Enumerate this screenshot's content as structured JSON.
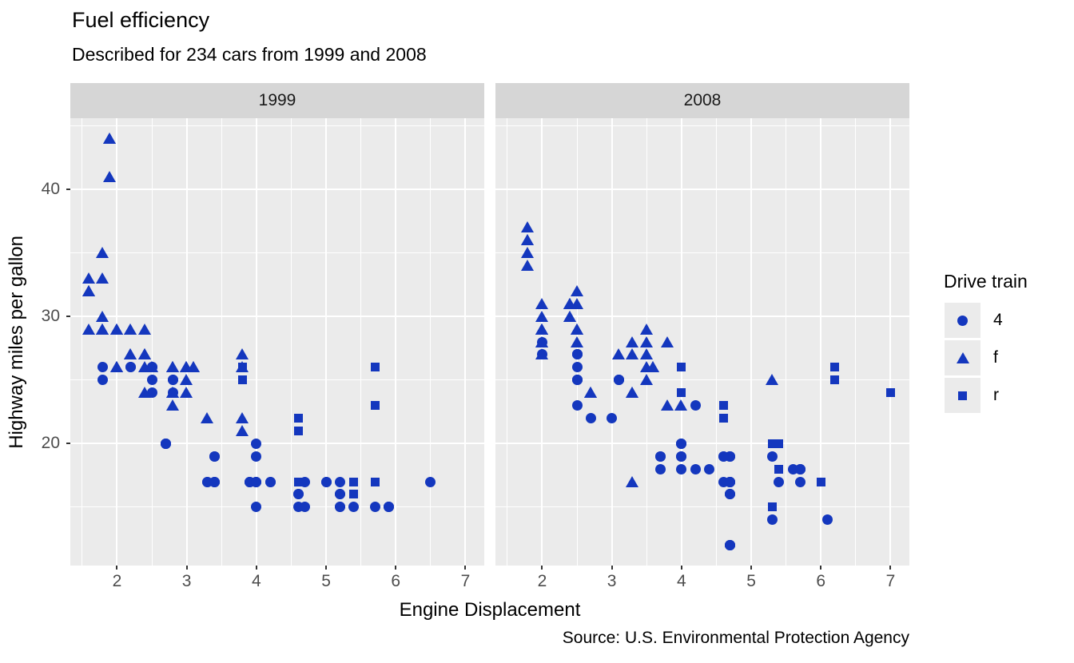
{
  "title": "Fuel efficiency",
  "subtitle": "Described for 234 cars from 1999 and 2008",
  "caption": "Source: U.S. Environmental Protection Agency",
  "colors": {
    "marker": "#1437be",
    "panel_bg": "#EBEBEB",
    "strip_bg": "#D6D6D6",
    "strip_text": "#1A1A1A",
    "grid": "#FFFFFF",
    "tick_text": "#4D4D4D",
    "legend_key_bg": "#EBEBEB"
  },
  "chart_data": {
    "type": "scatter",
    "title": "Fuel efficiency",
    "subtitle": "Described for 234 cars from 1999 and 2008",
    "caption": "Source: U.S. Environmental Protection Agency",
    "xlabel": "Engine Displacement",
    "ylabel": "Highway miles per gallon",
    "facets": [
      "1999",
      "2008"
    ],
    "legend": {
      "title": "Drive train",
      "position": "right",
      "entries": [
        {
          "label": "4",
          "shape": "circle"
        },
        {
          "label": "f",
          "shape": "triangle"
        },
        {
          "label": "r",
          "shape": "square"
        }
      ]
    },
    "x_ticks": [
      2,
      3,
      4,
      5,
      6,
      7
    ],
    "y_ticks": [
      20,
      30,
      40
    ],
    "x_minor_ticks": [
      1.5,
      2.5,
      3.5,
      4.5,
      5.5,
      6.5
    ],
    "y_minor_ticks": [
      15,
      25,
      35,
      45
    ],
    "xlim": [
      1.33,
      7.27
    ],
    "ylim": [
      10.4,
      45.6
    ],
    "grid": true,
    "series": [
      {
        "facet": "1999",
        "name": "4",
        "shape": "circle",
        "points": [
          [
            1.8,
            26
          ],
          [
            1.8,
            25
          ],
          [
            2.8,
            25
          ],
          [
            2.8,
            25
          ],
          [
            2.8,
            24
          ],
          [
            5.7,
            15
          ],
          [
            6.5,
            17
          ],
          [
            3.9,
            17
          ],
          [
            3.9,
            17
          ],
          [
            5.2,
            17
          ],
          [
            5.2,
            15
          ],
          [
            3.9,
            17
          ],
          [
            5.2,
            16
          ],
          [
            5.9,
            15
          ],
          [
            5.2,
            16
          ],
          [
            5.2,
            15
          ],
          [
            5.9,
            15
          ],
          [
            5.9,
            15
          ],
          [
            4.0,
            17
          ],
          [
            4.0,
            19
          ],
          [
            4.0,
            17
          ],
          [
            5.0,
            17
          ],
          [
            4.2,
            17
          ],
          [
            4.2,
            17
          ],
          [
            4.6,
            16
          ],
          [
            4.6,
            16
          ],
          [
            5.4,
            15
          ],
          [
            4.0,
            20
          ],
          [
            4.7,
            17
          ],
          [
            4.0,
            15
          ],
          [
            4.6,
            15
          ],
          [
            4.0,
            17
          ],
          [
            5.0,
            17
          ],
          [
            3.3,
            17
          ],
          [
            3.3,
            17
          ],
          [
            2.5,
            25
          ],
          [
            2.5,
            24
          ],
          [
            2.2,
            26
          ],
          [
            2.2,
            26
          ],
          [
            2.5,
            26
          ],
          [
            2.5,
            26
          ],
          [
            2.7,
            20
          ],
          [
            2.7,
            20
          ],
          [
            3.4,
            19
          ],
          [
            3.4,
            17
          ],
          [
            4.7,
            15
          ],
          [
            2.7,
            20
          ],
          [
            2.7,
            20
          ],
          [
            3.4,
            17
          ],
          [
            3.4,
            19
          ],
          [
            3.4,
            17
          ]
        ]
      },
      {
        "facet": "1999",
        "name": "f",
        "shape": "triangle",
        "points": [
          [
            1.8,
            29
          ],
          [
            1.8,
            29
          ],
          [
            2.8,
            26
          ],
          [
            2.8,
            26
          ],
          [
            2.4,
            27
          ],
          [
            3.1,
            26
          ],
          [
            2.4,
            24
          ],
          [
            3.0,
            24
          ],
          [
            3.3,
            22
          ],
          [
            3.8,
            22
          ],
          [
            3.8,
            21
          ],
          [
            1.6,
            33
          ],
          [
            1.6,
            32
          ],
          [
            1.6,
            32
          ],
          [
            1.6,
            29
          ],
          [
            1.6,
            32
          ],
          [
            2.4,
            26
          ],
          [
            2.4,
            27
          ],
          [
            2.5,
            26
          ],
          [
            2.5,
            26
          ],
          [
            2.0,
            26
          ],
          [
            2.0,
            29
          ],
          [
            2.4,
            29
          ],
          [
            2.4,
            27
          ],
          [
            3.0,
            26
          ],
          [
            3.0,
            25
          ],
          [
            3.1,
            26
          ],
          [
            3.8,
            26
          ],
          [
            3.8,
            27
          ],
          [
            2.2,
            29
          ],
          [
            2.2,
            27
          ],
          [
            3.0,
            26
          ],
          [
            3.0,
            26
          ],
          [
            2.2,
            27
          ],
          [
            2.2,
            29
          ],
          [
            3.0,
            26
          ],
          [
            1.8,
            30
          ],
          [
            1.8,
            33
          ],
          [
            1.8,
            35
          ],
          [
            2.0,
            29
          ],
          [
            2.0,
            26
          ],
          [
            2.8,
            24
          ],
          [
            1.9,
            44
          ],
          [
            2.0,
            29
          ],
          [
            2.0,
            26
          ],
          [
            2.8,
            23
          ],
          [
            2.8,
            24
          ],
          [
            1.9,
            44
          ],
          [
            1.9,
            41
          ],
          [
            2.0,
            29
          ],
          [
            2.0,
            26
          ],
          [
            1.8,
            29
          ],
          [
            1.8,
            29
          ],
          [
            2.8,
            26
          ],
          [
            2.8,
            26
          ]
        ]
      },
      {
        "facet": "1999",
        "name": "r",
        "shape": "square",
        "points": [
          [
            5.7,
            17
          ],
          [
            5.7,
            26
          ],
          [
            5.7,
            23
          ],
          [
            4.6,
            17
          ],
          [
            5.4,
            17
          ],
          [
            3.8,
            26
          ],
          [
            3.8,
            25
          ],
          [
            4.6,
            21
          ],
          [
            4.6,
            22
          ],
          [
            5.4,
            17
          ],
          [
            5.4,
            16
          ]
        ]
      },
      {
        "facet": "2008",
        "name": "4",
        "shape": "circle",
        "points": [
          [
            2.0,
            28
          ],
          [
            2.0,
            27
          ],
          [
            3.1,
            25
          ],
          [
            3.1,
            25
          ],
          [
            3.1,
            25
          ],
          [
            4.2,
            23
          ],
          [
            5.3,
            19
          ],
          [
            5.3,
            14
          ],
          [
            3.7,
            19
          ],
          [
            3.7,
            18
          ],
          [
            4.7,
            19
          ],
          [
            4.7,
            19
          ],
          [
            4.7,
            16
          ],
          [
            4.7,
            17
          ],
          [
            4.7,
            17
          ],
          [
            4.7,
            12
          ],
          [
            5.7,
            18
          ],
          [
            4.7,
            16
          ],
          [
            4.7,
            12
          ],
          [
            4.7,
            17
          ],
          [
            4.7,
            17
          ],
          [
            4.7,
            16
          ],
          [
            4.7,
            12
          ],
          [
            5.7,
            17
          ],
          [
            4.0,
            19
          ],
          [
            4.6,
            19
          ],
          [
            4.6,
            17
          ],
          [
            5.4,
            17
          ],
          [
            3.0,
            22
          ],
          [
            3.7,
            19
          ],
          [
            4.7,
            12
          ],
          [
            4.7,
            19
          ],
          [
            5.7,
            18
          ],
          [
            6.1,
            14
          ],
          [
            4.2,
            18
          ],
          [
            4.4,
            18
          ],
          [
            4.0,
            19
          ],
          [
            4.6,
            19
          ],
          [
            4.0,
            20
          ],
          [
            5.6,
            18
          ],
          [
            2.5,
            27
          ],
          [
            2.5,
            25
          ],
          [
            2.5,
            26
          ],
          [
            2.5,
            23
          ],
          [
            2.5,
            25
          ],
          [
            2.5,
            27
          ],
          [
            2.5,
            25
          ],
          [
            2.5,
            27
          ],
          [
            4.0,
            20
          ],
          [
            4.7,
            17
          ],
          [
            5.7,
            18
          ],
          [
            2.7,
            22
          ],
          [
            4.0,
            18
          ],
          [
            4.0,
            20
          ]
        ]
      },
      {
        "facet": "2008",
        "name": "f",
        "shape": "triangle",
        "points": [
          [
            2.0,
            31
          ],
          [
            2.0,
            30
          ],
          [
            3.1,
            27
          ],
          [
            2.4,
            30
          ],
          [
            3.5,
            29
          ],
          [
            3.6,
            26
          ],
          [
            3.3,
            24
          ],
          [
            3.3,
            24
          ],
          [
            3.3,
            17
          ],
          [
            3.8,
            23
          ],
          [
            4.0,
            23
          ],
          [
            1.8,
            34
          ],
          [
            1.8,
            36
          ],
          [
            1.8,
            36
          ],
          [
            2.0,
            29
          ],
          [
            2.4,
            30
          ],
          [
            2.4,
            31
          ],
          [
            3.3,
            28
          ],
          [
            2.0,
            28
          ],
          [
            2.0,
            27
          ],
          [
            2.7,
            24
          ],
          [
            2.7,
            24
          ],
          [
            2.7,
            24
          ],
          [
            2.5,
            31
          ],
          [
            2.5,
            32
          ],
          [
            3.5,
            27
          ],
          [
            3.5,
            26
          ],
          [
            3.5,
            25
          ],
          [
            3.8,
            28
          ],
          [
            5.3,
            25
          ],
          [
            2.4,
            31
          ],
          [
            2.4,
            31
          ],
          [
            3.5,
            28
          ],
          [
            2.4,
            31
          ],
          [
            2.4,
            31
          ],
          [
            3.3,
            27
          ],
          [
            1.8,
            37
          ],
          [
            1.8,
            35
          ],
          [
            2.0,
            29
          ],
          [
            2.0,
            29
          ],
          [
            2.0,
            29
          ],
          [
            2.0,
            29
          ],
          [
            2.5,
            29
          ],
          [
            2.5,
            29
          ],
          [
            2.5,
            28
          ],
          [
            2.5,
            29
          ],
          [
            2.0,
            28
          ],
          [
            2.0,
            29
          ],
          [
            3.6,
            26
          ]
        ]
      },
      {
        "facet": "2008",
        "name": "r",
        "shape": "square",
        "points": [
          [
            5.3,
            20
          ],
          [
            5.3,
            15
          ],
          [
            5.3,
            20
          ],
          [
            6.0,
            17
          ],
          [
            6.2,
            26
          ],
          [
            6.2,
            25
          ],
          [
            7.0,
            24
          ],
          [
            5.4,
            18
          ],
          [
            4.0,
            26
          ],
          [
            4.0,
            24
          ],
          [
            4.6,
            23
          ],
          [
            4.6,
            22
          ],
          [
            5.4,
            20
          ],
          [
            5.4,
            18
          ]
        ]
      }
    ]
  }
}
